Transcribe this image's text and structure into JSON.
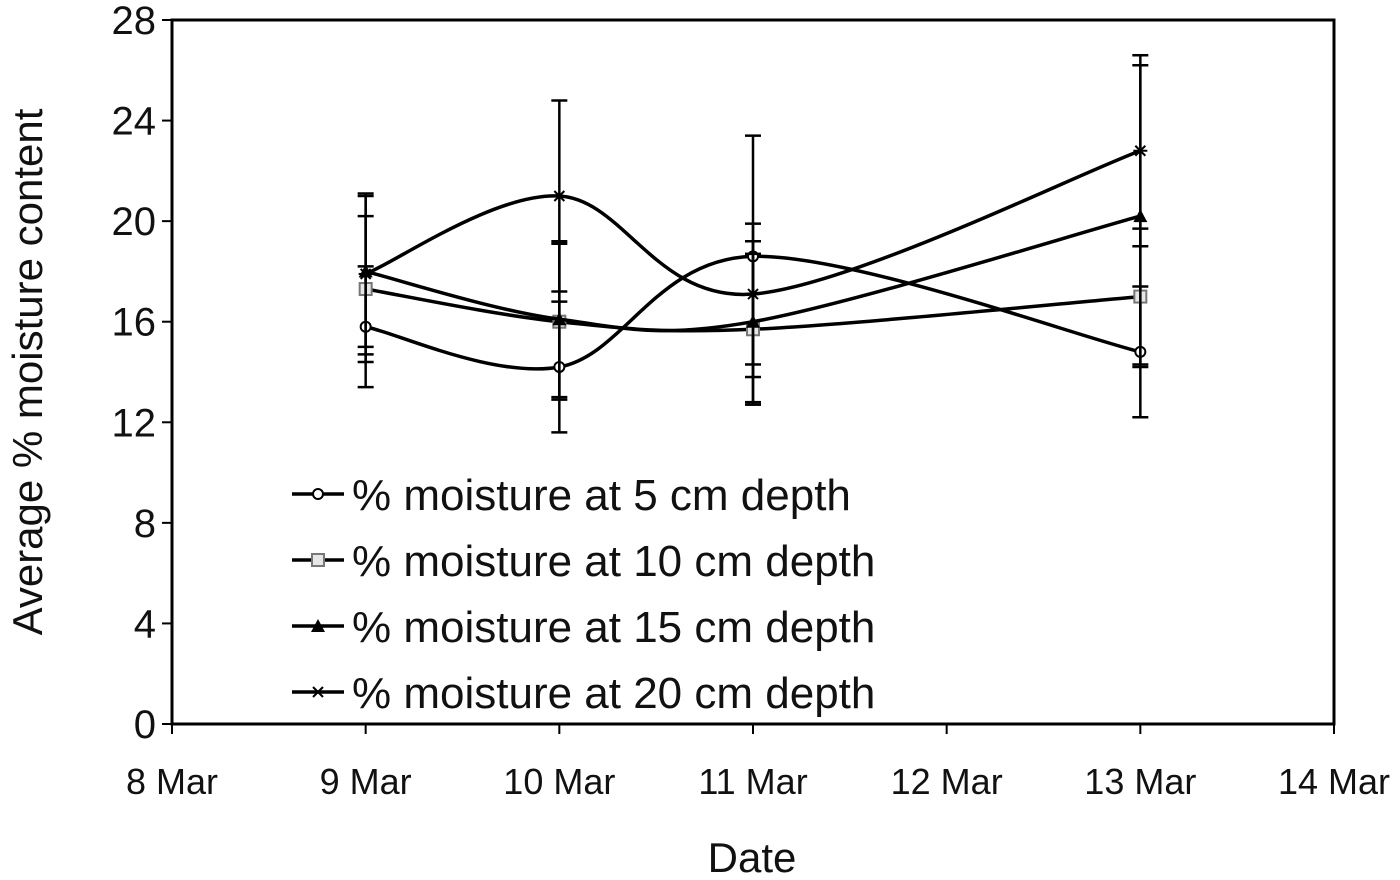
{
  "chart_data": {
    "type": "line",
    "title": "",
    "xlabel": "Date",
    "ylabel": "Average % moisture content",
    "x_ticks": [
      "8 Mar",
      "9 Mar",
      "10 Mar",
      "11 Mar",
      "12 Mar",
      "13 Mar",
      "14 Mar"
    ],
    "xlim": [
      "8 Mar",
      "14 Mar"
    ],
    "ylim": [
      0,
      28
    ],
    "y_ticks": [
      0,
      4,
      8,
      12,
      16,
      20,
      24,
      28
    ],
    "grid": false,
    "smooth_lines": true,
    "legend_position": "bottom-left inside plot",
    "series": [
      {
        "name": "% moisture at 5 cm depth",
        "marker": "open-circle",
        "x": [
          "9 Mar",
          "10 Mar",
          "11 Mar",
          "13 Mar"
        ],
        "values": [
          15.8,
          14.2,
          18.6,
          14.8
        ],
        "error": [
          2.4,
          2.6,
          4.8,
          2.6
        ]
      },
      {
        "name": "% moisture at 10 cm depth",
        "marker": "open-square",
        "x": [
          "9 Mar",
          "10 Mar",
          "11 Mar",
          "13 Mar"
        ],
        "values": [
          17.3,
          16.0,
          15.7,
          17.0
        ],
        "error": [
          2.9,
          3.1,
          3.0,
          2.7
        ]
      },
      {
        "name": "% moisture at 15 cm depth",
        "marker": "filled-triangle",
        "x": [
          "9 Mar",
          "10 Mar",
          "11 Mar",
          "13 Mar"
        ],
        "values": [
          18.0,
          16.1,
          16.0,
          20.2
        ],
        "error": [
          3.0,
          3.1,
          3.2,
          6.0
        ]
      },
      {
        "name": "% moisture at 20 cm depth",
        "marker": "star",
        "x": [
          "9 Mar",
          "10 Mar",
          "11 Mar",
          "13 Mar"
        ],
        "values": [
          17.9,
          21.0,
          17.1,
          22.8
        ],
        "error": [
          3.2,
          3.8,
          2.8,
          3.8
        ]
      }
    ],
    "colors": {
      "line": "#000000",
      "background": "#ffffff"
    }
  }
}
